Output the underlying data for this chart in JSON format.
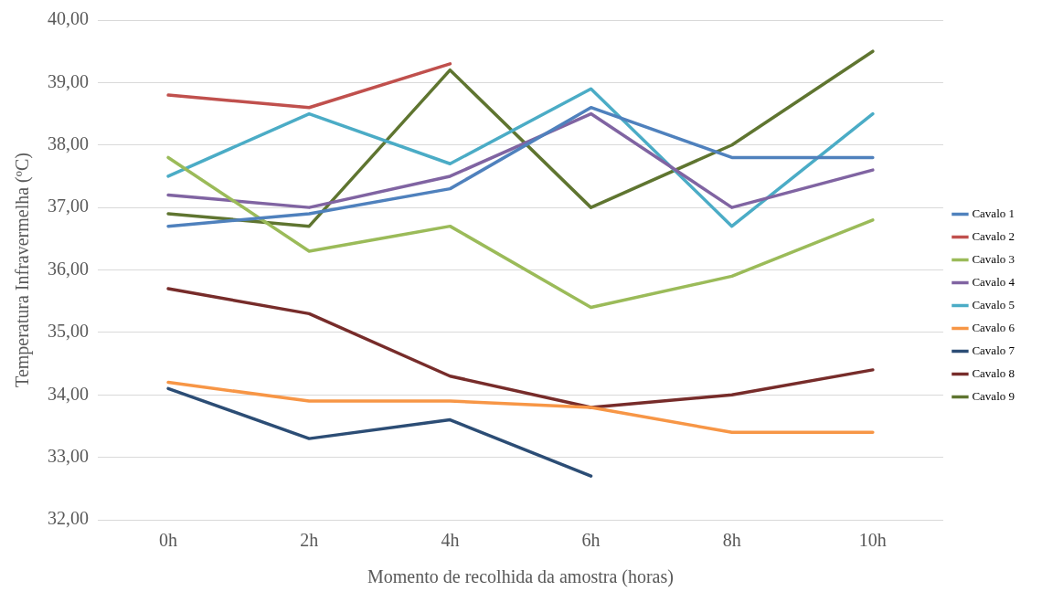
{
  "chart_data": {
    "type": "line",
    "xlabel": "Momento de recolhida da amostra (horas)",
    "ylabel": "Temperatura Infravermelha (ºC)",
    "categories": [
      "0h",
      "2h",
      "4h",
      "6h",
      "8h",
      "10h"
    ],
    "series": [
      {
        "name": "Cavalo 1",
        "color": "#4f81bd",
        "values": [
          36.7,
          36.9,
          37.3,
          38.6,
          37.8,
          37.8
        ]
      },
      {
        "name": "Cavalo 2",
        "color": "#c0504d",
        "values": [
          38.8,
          38.6,
          39.3,
          null,
          null,
          null
        ]
      },
      {
        "name": "Cavalo 3",
        "color": "#9bbb59",
        "values": [
          37.8,
          36.3,
          36.7,
          35.4,
          35.9,
          36.8
        ]
      },
      {
        "name": "Cavalo 4",
        "color": "#8064a2",
        "values": [
          37.2,
          37.0,
          37.5,
          38.5,
          37.0,
          37.6
        ]
      },
      {
        "name": "Cavalo 5",
        "color": "#4bacc6",
        "values": [
          37.5,
          38.5,
          37.7,
          38.9,
          36.7,
          38.5
        ]
      },
      {
        "name": "Cavalo 6",
        "color": "#f79646",
        "values": [
          34.2,
          33.9,
          33.9,
          33.8,
          33.4,
          33.4
        ]
      },
      {
        "name": "Cavalo 7",
        "color": "#2c4d75",
        "values": [
          34.1,
          33.3,
          33.6,
          32.7,
          null,
          null
        ]
      },
      {
        "name": "Cavalo 8",
        "color": "#772c2a",
        "values": [
          35.7,
          35.3,
          34.3,
          33.8,
          34.0,
          34.4
        ]
      },
      {
        "name": "Cavalo 9",
        "color": "#5f7530",
        "values": [
          36.9,
          36.7,
          39.2,
          37.0,
          38.0,
          39.5
        ]
      }
    ],
    "ylim": [
      32,
      40
    ],
    "yticks": [
      {
        "value": 32,
        "label": "32,00"
      },
      {
        "value": 33,
        "label": "33,00"
      },
      {
        "value": 34,
        "label": "34,00"
      },
      {
        "value": 35,
        "label": "35,00"
      },
      {
        "value": 36,
        "label": "36,00"
      },
      {
        "value": 37,
        "label": "37,00"
      },
      {
        "value": 38,
        "label": "38,00"
      },
      {
        "value": 39,
        "label": "39,00"
      },
      {
        "value": 40,
        "label": "40,00"
      }
    ],
    "grid": "y",
    "legend": "right",
    "marker": "none",
    "line_style": "solid"
  }
}
